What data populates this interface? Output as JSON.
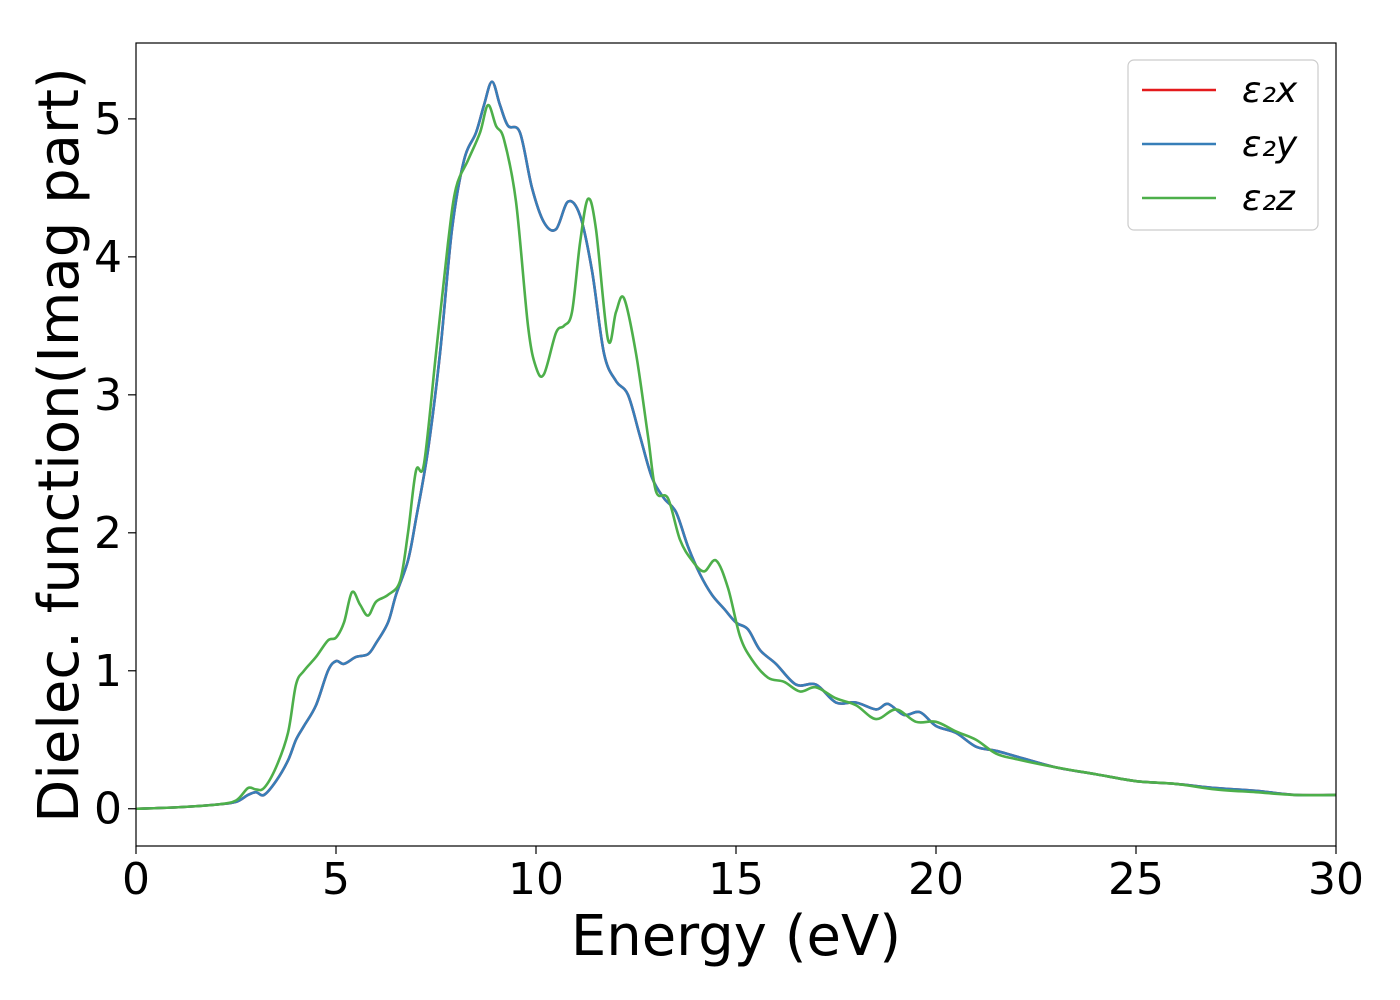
{
  "chart_data": {
    "type": "line",
    "title": "",
    "xlabel": "Energy (eV)",
    "ylabel": "Dielec. function(Imag part)",
    "xlim": [
      0,
      30
    ],
    "ylim": [
      -0.27,
      5.55
    ],
    "xticks": [
      0,
      5,
      10,
      15,
      20,
      25,
      30
    ],
    "yticks": [
      0,
      1,
      2,
      3,
      4,
      5
    ],
    "grid": false,
    "legend_position": "top-right",
    "series": [
      {
        "name": "ε₂x",
        "color": "#e41a1c",
        "x": [
          0,
          1,
          2,
          2.5,
          2.8,
          3.0,
          3.2,
          3.5,
          3.8,
          4.0,
          4.2,
          4.5,
          4.8,
          5.0,
          5.2,
          5.5,
          5.8,
          6.0,
          6.3,
          6.5,
          6.8,
          7.0,
          7.3,
          7.6,
          7.9,
          8.2,
          8.5,
          8.7,
          8.9,
          9.1,
          9.3,
          9.6,
          9.9,
          10.2,
          10.5,
          10.8,
          11.1,
          11.4,
          11.7,
          12.0,
          12.3,
          12.6,
          12.9,
          13.2,
          13.5,
          13.8,
          14.1,
          14.4,
          14.7,
          15.0,
          15.3,
          15.6,
          16.0,
          16.5,
          17.0,
          17.5,
          18.0,
          18.5,
          18.8,
          19.2,
          19.6,
          20.0,
          20.5,
          21.0,
          21.5,
          22.0,
          23.0,
          24.0,
          25.0,
          26.0,
          27.0,
          28.0,
          29.0,
          30.0
        ],
        "y": [
          0.0,
          0.01,
          0.03,
          0.05,
          0.1,
          0.12,
          0.1,
          0.2,
          0.35,
          0.5,
          0.6,
          0.75,
          1.0,
          1.07,
          1.05,
          1.1,
          1.12,
          1.2,
          1.35,
          1.55,
          1.8,
          2.1,
          2.6,
          3.3,
          4.2,
          4.7,
          4.9,
          5.1,
          5.27,
          5.1,
          4.95,
          4.9,
          4.5,
          4.25,
          4.2,
          4.4,
          4.3,
          3.9,
          3.3,
          3.1,
          3.0,
          2.7,
          2.4,
          2.25,
          2.15,
          1.9,
          1.7,
          1.55,
          1.45,
          1.35,
          1.3,
          1.15,
          1.05,
          0.9,
          0.9,
          0.77,
          0.77,
          0.72,
          0.76,
          0.68,
          0.7,
          0.6,
          0.55,
          0.45,
          0.42,
          0.38,
          0.3,
          0.25,
          0.2,
          0.18,
          0.15,
          0.13,
          0.1,
          0.1
        ]
      },
      {
        "name": "ε₂y",
        "color": "#377eb8",
        "x": [
          0,
          1,
          2,
          2.5,
          2.8,
          3.0,
          3.2,
          3.5,
          3.8,
          4.0,
          4.2,
          4.5,
          4.8,
          5.0,
          5.2,
          5.5,
          5.8,
          6.0,
          6.3,
          6.5,
          6.8,
          7.0,
          7.3,
          7.6,
          7.9,
          8.2,
          8.5,
          8.7,
          8.9,
          9.1,
          9.3,
          9.6,
          9.9,
          10.2,
          10.5,
          10.8,
          11.1,
          11.4,
          11.7,
          12.0,
          12.3,
          12.6,
          12.9,
          13.2,
          13.5,
          13.8,
          14.1,
          14.4,
          14.7,
          15.0,
          15.3,
          15.6,
          16.0,
          16.5,
          17.0,
          17.5,
          18.0,
          18.5,
          18.8,
          19.2,
          19.6,
          20.0,
          20.5,
          21.0,
          21.5,
          22.0,
          23.0,
          24.0,
          25.0,
          26.0,
          27.0,
          28.0,
          29.0,
          30.0
        ],
        "y": [
          0.0,
          0.01,
          0.03,
          0.05,
          0.1,
          0.12,
          0.1,
          0.2,
          0.35,
          0.5,
          0.6,
          0.75,
          1.0,
          1.07,
          1.05,
          1.1,
          1.12,
          1.2,
          1.35,
          1.55,
          1.8,
          2.1,
          2.6,
          3.3,
          4.2,
          4.7,
          4.9,
          5.1,
          5.27,
          5.1,
          4.95,
          4.9,
          4.5,
          4.25,
          4.2,
          4.4,
          4.3,
          3.9,
          3.3,
          3.1,
          3.0,
          2.7,
          2.4,
          2.25,
          2.15,
          1.9,
          1.7,
          1.55,
          1.45,
          1.35,
          1.3,
          1.15,
          1.05,
          0.9,
          0.9,
          0.77,
          0.77,
          0.72,
          0.76,
          0.68,
          0.7,
          0.6,
          0.55,
          0.45,
          0.42,
          0.38,
          0.3,
          0.25,
          0.2,
          0.18,
          0.15,
          0.13,
          0.1,
          0.1
        ]
      },
      {
        "name": "ε₂z",
        "color": "#4daf4a",
        "x": [
          0,
          1,
          2,
          2.5,
          2.8,
          3.0,
          3.2,
          3.5,
          3.8,
          4.0,
          4.2,
          4.5,
          4.8,
          5.0,
          5.2,
          5.4,
          5.6,
          5.8,
          6.0,
          6.3,
          6.6,
          6.8,
          7.0,
          7.2,
          7.5,
          7.8,
          8.0,
          8.3,
          8.6,
          8.8,
          9.0,
          9.2,
          9.5,
          9.8,
          10.0,
          10.2,
          10.5,
          10.7,
          10.9,
          11.1,
          11.3,
          11.5,
          11.8,
          12.0,
          12.2,
          12.5,
          12.8,
          13.0,
          13.3,
          13.6,
          13.9,
          14.2,
          14.5,
          14.8,
          15.1,
          15.4,
          15.8,
          16.2,
          16.6,
          17.0,
          17.5,
          18.0,
          18.5,
          19.0,
          19.5,
          20.0,
          20.5,
          21.0,
          21.5,
          22.0,
          23.0,
          24.0,
          25.0,
          26.0,
          27.0,
          28.0,
          29.0,
          30.0
        ],
        "y": [
          0.0,
          0.01,
          0.03,
          0.06,
          0.15,
          0.14,
          0.15,
          0.3,
          0.55,
          0.9,
          1.0,
          1.1,
          1.22,
          1.24,
          1.35,
          1.57,
          1.48,
          1.4,
          1.5,
          1.55,
          1.65,
          2.0,
          2.45,
          2.5,
          3.3,
          4.1,
          4.5,
          4.7,
          4.9,
          5.1,
          4.95,
          4.85,
          4.4,
          3.5,
          3.2,
          3.15,
          3.45,
          3.5,
          3.6,
          4.1,
          4.42,
          4.2,
          3.4,
          3.6,
          3.7,
          3.3,
          2.7,
          2.3,
          2.25,
          1.95,
          1.8,
          1.72,
          1.8,
          1.6,
          1.25,
          1.08,
          0.95,
          0.92,
          0.85,
          0.88,
          0.8,
          0.75,
          0.65,
          0.72,
          0.63,
          0.63,
          0.56,
          0.5,
          0.4,
          0.36,
          0.3,
          0.25,
          0.2,
          0.18,
          0.14,
          0.12,
          0.1,
          0.1
        ]
      }
    ]
  }
}
